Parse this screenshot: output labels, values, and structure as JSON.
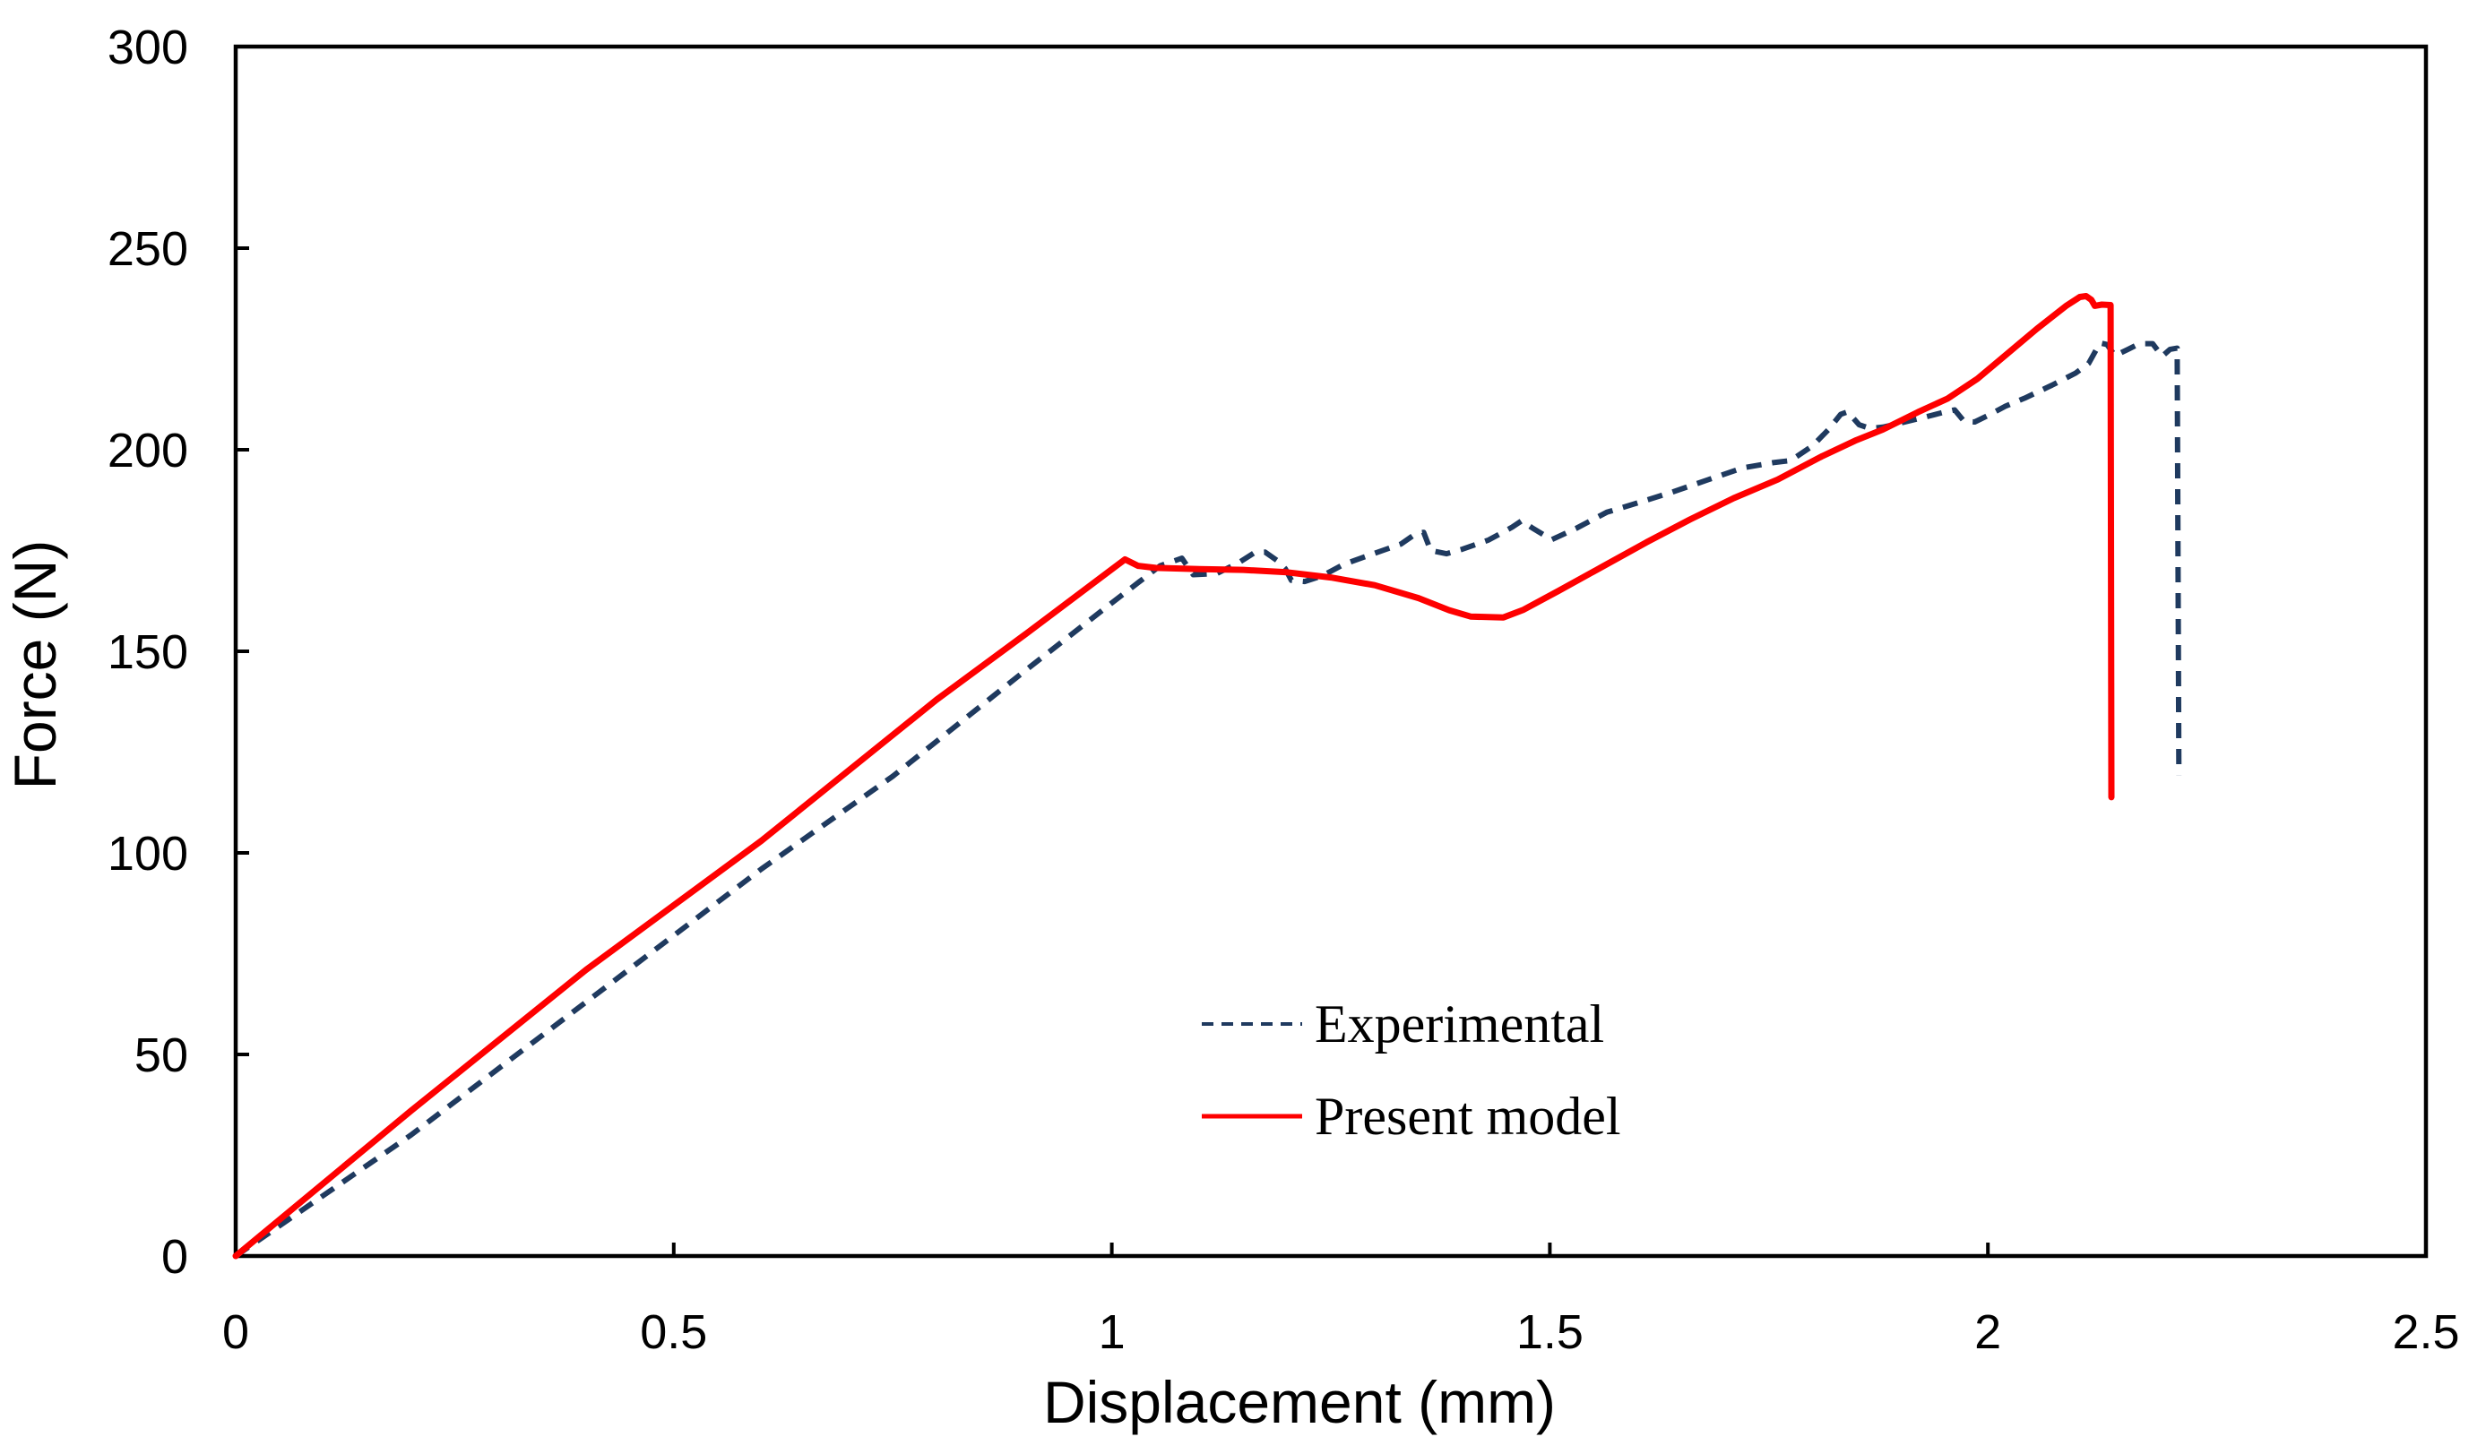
{
  "chart_data": {
    "type": "line",
    "title": "",
    "xlabel": "Displacement (mm)",
    "ylabel": "Force (N)",
    "xlim": [
      0,
      2.5
    ],
    "ylim": [
      0,
      300
    ],
    "x_ticks": [
      0,
      0.5,
      1,
      1.5,
      2,
      2.5
    ],
    "x_tick_labels": [
      "0",
      "0.5",
      "1",
      "1.5",
      "2",
      "2.5"
    ],
    "y_ticks": [
      0,
      50,
      100,
      150,
      200,
      250,
      300
    ],
    "y_tick_labels": [
      "0",
      "50",
      "100",
      "150",
      "200",
      "250",
      "300"
    ],
    "grid": false,
    "frame": true,
    "tick_style": "inside",
    "axis_color": "#000000",
    "legend_position": "inside-lower-center",
    "series": [
      {
        "name": "Experimental",
        "color": "#1f3a5f",
        "style": "dashed",
        "points": [
          [
            0,
            0
          ],
          [
            0.2,
            30
          ],
          [
            0.4,
            63
          ],
          [
            0.6,
            96
          ],
          [
            0.75,
            119
          ],
          [
            0.9,
            145
          ],
          [
            1.0,
            162
          ],
          [
            1.04,
            168.7
          ],
          [
            1.055,
            171.2
          ],
          [
            1.08,
            173.1
          ],
          [
            1.093,
            169.0
          ],
          [
            1.12,
            169.3
          ],
          [
            1.145,
            172.0
          ],
          [
            1.163,
            174.5
          ],
          [
            1.175,
            174.6
          ],
          [
            1.19,
            172.3
          ],
          [
            1.198,
            170.5
          ],
          [
            1.205,
            167.6
          ],
          [
            1.22,
            167.3
          ],
          [
            1.24,
            168.7
          ],
          [
            1.265,
            171.6
          ],
          [
            1.3,
            174.3
          ],
          [
            1.33,
            176.6
          ],
          [
            1.348,
            179.3
          ],
          [
            1.356,
            179.5
          ],
          [
            1.364,
            175.0
          ],
          [
            1.382,
            174.2
          ],
          [
            1.4,
            175.3
          ],
          [
            1.43,
            177.6
          ],
          [
            1.457,
            180.8
          ],
          [
            1.468,
            182.4
          ],
          [
            1.48,
            180.6
          ],
          [
            1.502,
            177.7
          ],
          [
            1.53,
            180.5
          ],
          [
            1.565,
            184.5
          ],
          [
            1.6,
            186.8
          ],
          [
            1.64,
            189.5
          ],
          [
            1.68,
            192.5
          ],
          [
            1.72,
            195.5
          ],
          [
            1.755,
            196.8
          ],
          [
            1.775,
            197.3
          ],
          [
            1.8,
            201.0
          ],
          [
            1.818,
            205.0
          ],
          [
            1.832,
            208.8
          ],
          [
            1.84,
            209.4
          ],
          [
            1.853,
            206.2
          ],
          [
            1.865,
            205.3
          ],
          [
            1.88,
            205.6
          ],
          [
            1.9,
            206.6
          ],
          [
            1.93,
            208.2
          ],
          [
            1.95,
            209.3
          ],
          [
            1.962,
            209.9
          ],
          [
            1.973,
            207.0
          ],
          [
            1.985,
            206.9
          ],
          [
            2.0,
            208.5
          ],
          [
            2.02,
            210.8
          ],
          [
            2.042,
            212.8
          ],
          [
            2.073,
            216.0
          ],
          [
            2.1,
            219.0
          ],
          [
            2.115,
            221.4
          ],
          [
            2.128,
            226.5
          ],
          [
            2.136,
            226.1
          ],
          [
            2.145,
            223.3
          ],
          [
            2.16,
            224.9
          ],
          [
            2.173,
            226.3
          ],
          [
            2.188,
            226.3
          ],
          [
            2.199,
            223.2
          ],
          [
            2.208,
            224.9
          ],
          [
            2.216,
            225.2
          ],
          [
            2.218,
            119.3
          ]
        ]
      },
      {
        "name": "Present model",
        "color": "#fe0000",
        "style": "solid",
        "points": [
          [
            0,
            0
          ],
          [
            0.2,
            36
          ],
          [
            0.4,
            71
          ],
          [
            0.6,
            103
          ],
          [
            0.8,
            138
          ],
          [
            0.9,
            154
          ],
          [
            1.015,
            172.8
          ],
          [
            1.03,
            171.2
          ],
          [
            1.05,
            170.7
          ],
          [
            1.1,
            170.4
          ],
          [
            1.15,
            170.2
          ],
          [
            1.2,
            169.6
          ],
          [
            1.25,
            168.3
          ],
          [
            1.3,
            166.4
          ],
          [
            1.35,
            163.2
          ],
          [
            1.385,
            160.2
          ],
          [
            1.41,
            158.6
          ],
          [
            1.447,
            158.4
          ],
          [
            1.47,
            160.3
          ],
          [
            1.51,
            165.0
          ],
          [
            1.56,
            171.0
          ],
          [
            1.61,
            177.0
          ],
          [
            1.66,
            182.7
          ],
          [
            1.71,
            188.0
          ],
          [
            1.76,
            192.6
          ],
          [
            1.81,
            198.3
          ],
          [
            1.85,
            202.4
          ],
          [
            1.88,
            205.0
          ],
          [
            1.92,
            209.3
          ],
          [
            1.954,
            212.7
          ],
          [
            1.988,
            217.6
          ],
          [
            2.022,
            223.8
          ],
          [
            2.056,
            230.0
          ],
          [
            2.09,
            235.8
          ],
          [
            2.105,
            237.9
          ],
          [
            2.112,
            238.1
          ],
          [
            2.118,
            237.2
          ],
          [
            2.122,
            235.7
          ],
          [
            2.13,
            236.0
          ],
          [
            2.14,
            235.9
          ],
          [
            2.141,
            113.8
          ]
        ]
      }
    ]
  },
  "legend": {
    "items": [
      {
        "label": "Experimental"
      },
      {
        "label": "Present model"
      }
    ]
  }
}
